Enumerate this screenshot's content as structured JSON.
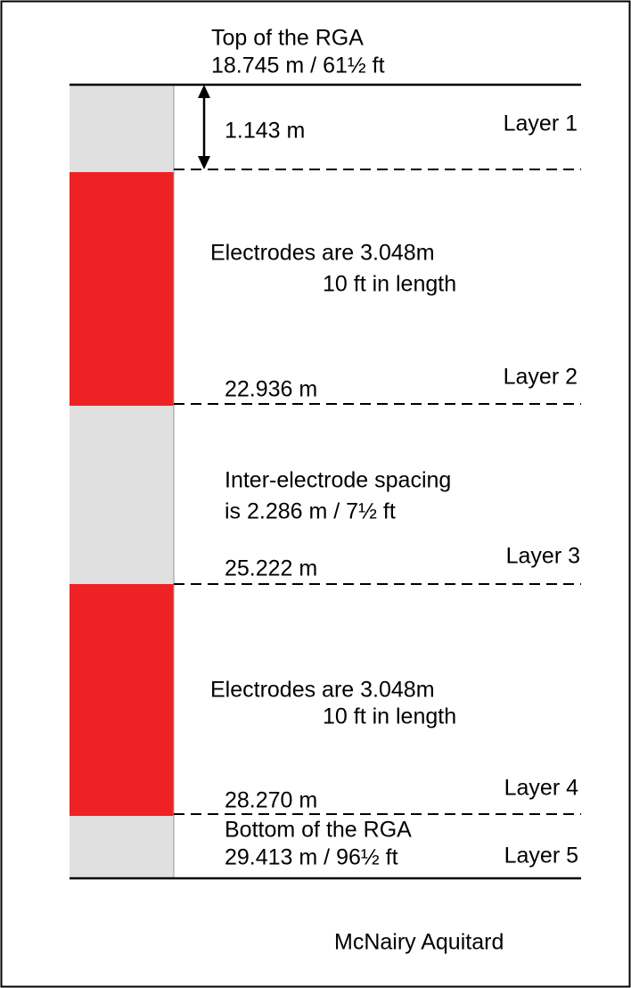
{
  "top": {
    "title": "Top of the RGA",
    "depth": "18.745 m / 61½ ft"
  },
  "layers": [
    {
      "label": "Layer 1",
      "depth": "1.143 m"
    },
    {
      "label": "Layer 2",
      "depth": "22.936 m",
      "note": [
        "Electrodes are 3.048m",
        "10 ft in length"
      ]
    },
    {
      "label": "Layer 3",
      "depth": "25.222 m",
      "note": [
        "Inter-electrode spacing",
        "is 2.286 m / 7½ ft"
      ]
    },
    {
      "label": "Layer 4",
      "depth": "28.270 m",
      "note": [
        "Electrodes are 3.048m",
        "10 ft in length"
      ]
    },
    {
      "label": "Layer 5",
      "note": [
        "Bottom of the RGA",
        "29.413 m / 96½ ft"
      ]
    }
  ],
  "footer": "McNairy Aquitard"
}
